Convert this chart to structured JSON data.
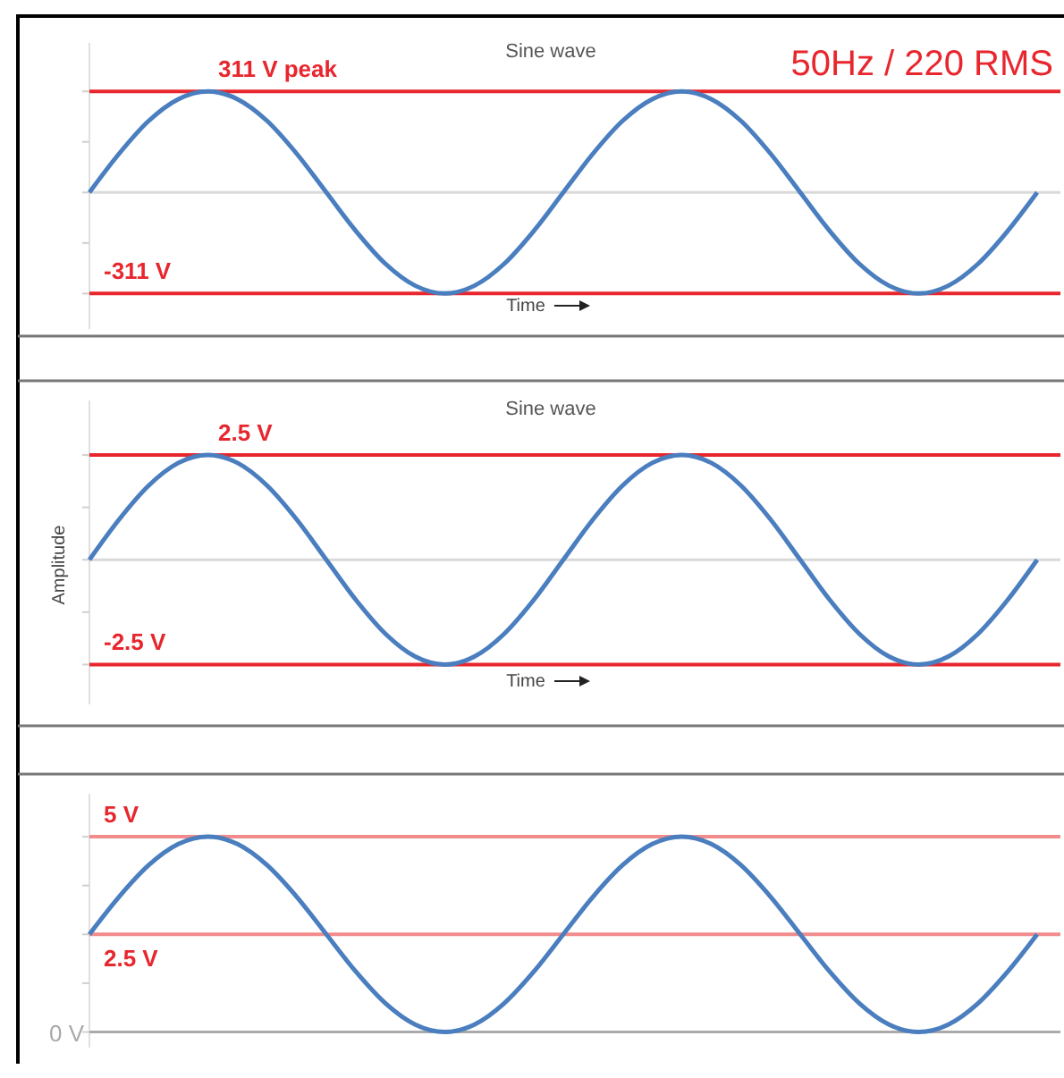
{
  "chart_data": [
    {
      "type": "line",
      "title": "Sine wave",
      "xlabel": "Time",
      "annotations": [
        "50Hz / 220 RMS"
      ],
      "categories": [
        null,
        null,
        null,
        null,
        null,
        null,
        null,
        null,
        null,
        null,
        null,
        null,
        null,
        null,
        null,
        null,
        null,
        null,
        null,
        null,
        null,
        null,
        null,
        null,
        null,
        null,
        null,
        null,
        null,
        null,
        null,
        null,
        null
      ],
      "series": [
        {
          "color": "#4a7ebf",
          "values": [
            0,
            119,
            220,
            287,
            311,
            287,
            220,
            119,
            0,
            -119,
            -220,
            -287,
            -311,
            -287,
            -220,
            -119,
            0,
            119,
            220,
            287,
            311,
            287,
            220,
            119,
            0,
            -119,
            -220,
            -287,
            -311,
            -287,
            -220,
            -119,
            0
          ]
        }
      ],
      "ylim": [
        -420,
        460
      ],
      "yticks": [
        {
          "value": -311,
          "label": null
        },
        {
          "value": -155.5,
          "label": null
        },
        {
          "value": 0,
          "label": null
        },
        {
          "value": 155.5,
          "label": null
        },
        {
          "value": 311,
          "label": null
        }
      ],
      "marker": "none",
      "ref_lines": [
        {
          "axis": "y",
          "value": 311,
          "label": "311 V peak",
          "color": "#e8262d"
        },
        {
          "axis": "y",
          "value": -311,
          "label": "-311 V",
          "color": "#e8262d"
        },
        {
          "axis": "y",
          "value": 0,
          "label": null,
          "color": "#d9d9d9"
        }
      ]
    },
    {
      "type": "line",
      "title": "Sine wave",
      "xlabel": "Time",
      "ylabel": "Amplitude",
      "categories": [
        null,
        null,
        null,
        null,
        null,
        null,
        null,
        null,
        null,
        null,
        null,
        null,
        null,
        null,
        null,
        null,
        null,
        null,
        null,
        null,
        null,
        null,
        null,
        null,
        null,
        null,
        null,
        null,
        null,
        null,
        null,
        null,
        null
      ],
      "series": [
        {
          "color": "#4a7ebf",
          "values": [
            0,
            0.96,
            1.77,
            2.31,
            2.5,
            2.31,
            1.77,
            0.96,
            0,
            -0.96,
            -1.77,
            -2.31,
            -2.5,
            -2.31,
            -1.77,
            -0.96,
            0,
            0.96,
            1.77,
            2.31,
            2.5,
            2.31,
            1.77,
            0.96,
            0,
            -0.96,
            -1.77,
            -2.31,
            -2.5,
            -2.31,
            -1.77,
            -0.96,
            0
          ]
        }
      ],
      "ylim": [
        -3.45,
        3.8
      ],
      "yticks": [
        {
          "value": -2.5,
          "label": null
        },
        {
          "value": -1.25,
          "label": null
        },
        {
          "value": 0,
          "label": null
        },
        {
          "value": 1.25,
          "label": null
        },
        {
          "value": 2.5,
          "label": null
        }
      ],
      "marker": "none",
      "ref_lines": [
        {
          "axis": "y",
          "value": 2.5,
          "label": "2.5 V",
          "color": "#e8262d"
        },
        {
          "axis": "y",
          "value": -2.5,
          "label": "-2.5 V",
          "color": "#e8262d"
        },
        {
          "axis": "y",
          "value": 0,
          "label": null,
          "color": "#d9d9d9"
        }
      ]
    },
    {
      "type": "line",
      "categories": [
        null,
        null,
        null,
        null,
        null,
        null,
        null,
        null,
        null,
        null,
        null,
        null,
        null,
        null,
        null,
        null,
        null,
        null,
        null,
        null,
        null,
        null,
        null,
        null,
        null,
        null,
        null,
        null,
        null,
        null,
        null,
        null,
        null
      ],
      "series": [
        {
          "color": "#4a7ebf",
          "values": [
            2.5,
            3.46,
            4.27,
            4.81,
            5,
            4.81,
            4.27,
            3.46,
            2.5,
            1.54,
            0.73,
            0.19,
            0,
            0.19,
            0.73,
            1.54,
            2.5,
            3.46,
            4.27,
            4.81,
            5,
            4.81,
            4.27,
            3.46,
            2.5,
            1.54,
            0.73,
            0.19,
            0,
            0.19,
            0.73,
            1.54,
            2.5
          ]
        }
      ],
      "ylim": [
        -0.4,
        6.1
      ],
      "yticks": [
        {
          "value": 0,
          "label": null
        },
        {
          "value": 1.25,
          "label": null
        },
        {
          "value": 2.5,
          "label": null
        },
        {
          "value": 3.75,
          "label": null
        },
        {
          "value": 5,
          "label": null
        }
      ],
      "marker": "none",
      "ref_lines": [
        {
          "axis": "y",
          "value": 5,
          "label": "5 V",
          "color": "#f28b8b"
        },
        {
          "axis": "y",
          "value": 2.5,
          "label": "2.5 V",
          "color": "#f28b8b"
        },
        {
          "axis": "y",
          "value": 0,
          "label": "0 V",
          "color": "#aaaaaa"
        }
      ]
    }
  ]
}
